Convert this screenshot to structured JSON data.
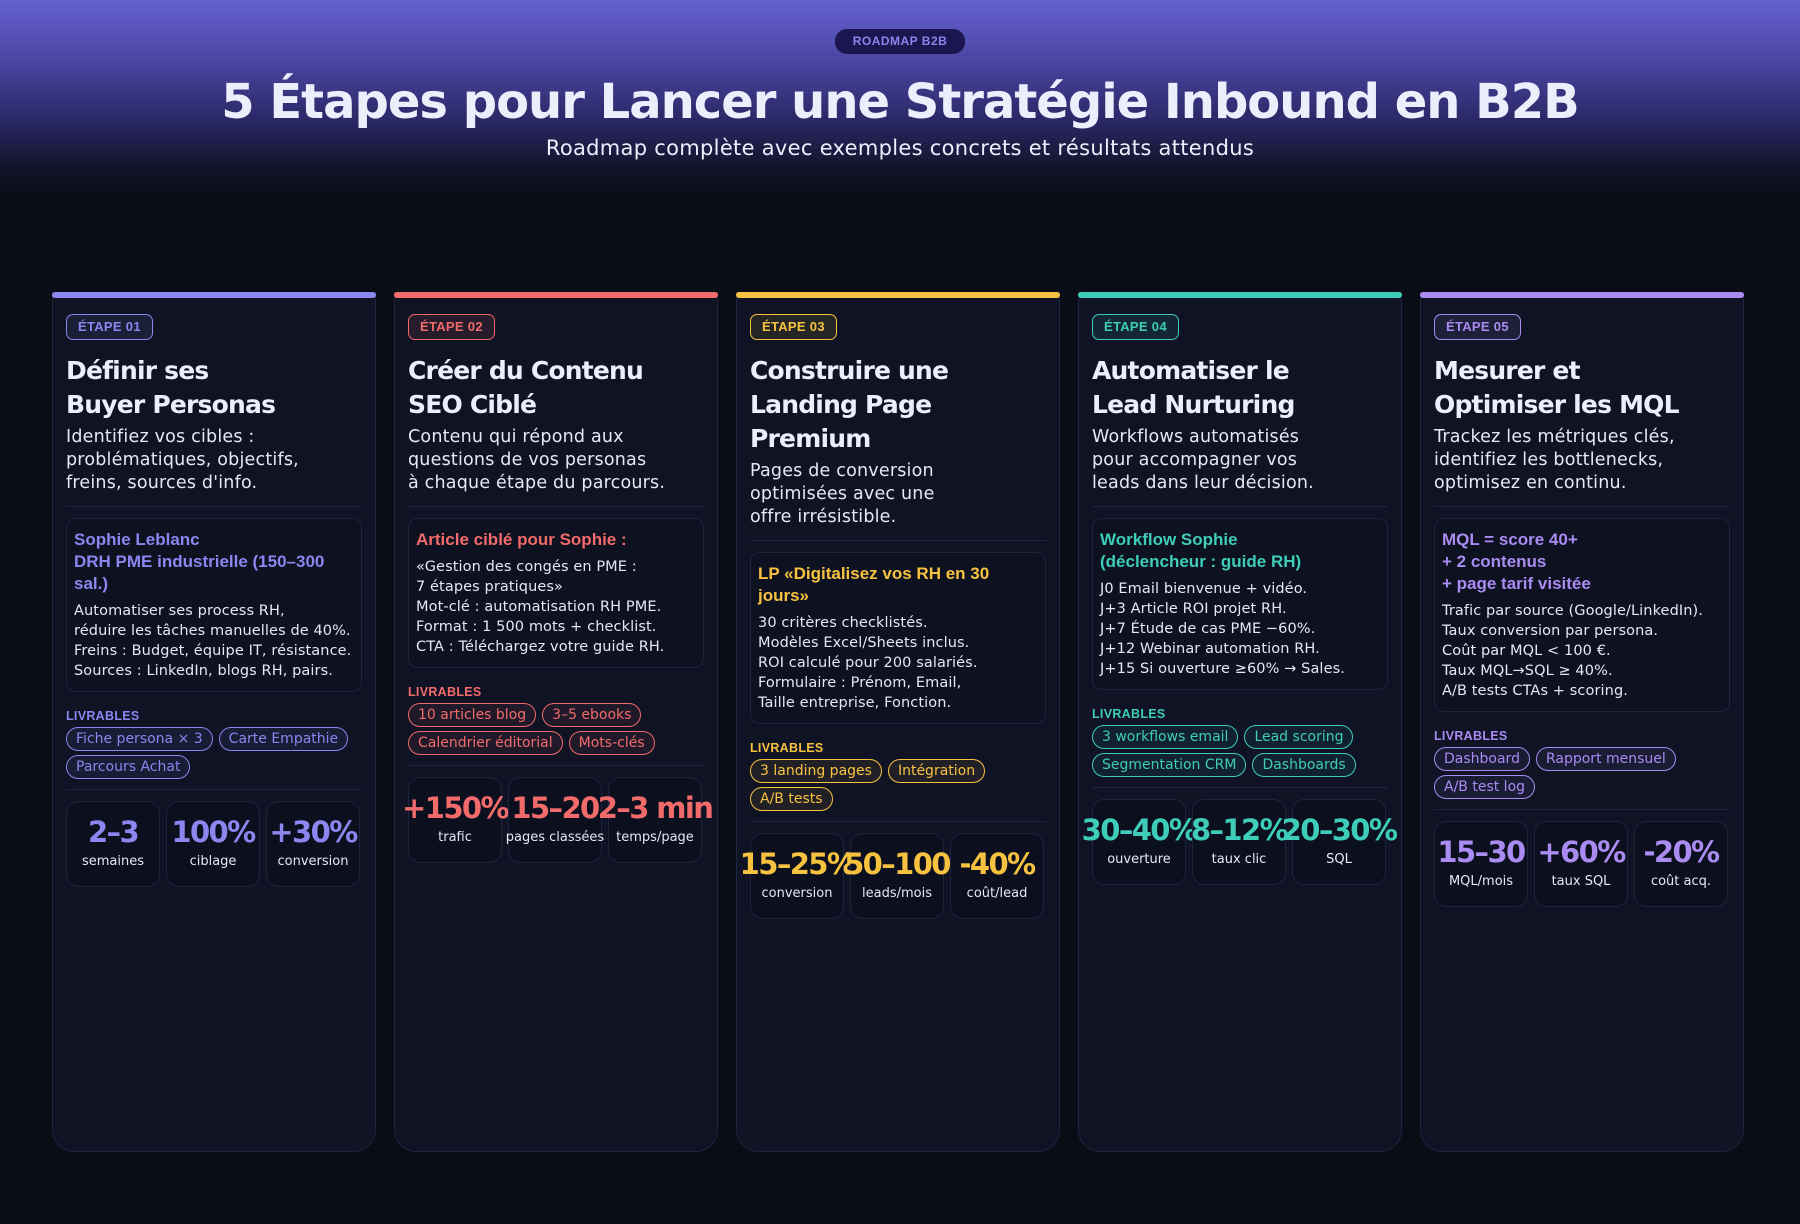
{
  "header": {
    "badge": "ROADMAP B2B",
    "title": "5 Étapes pour Lancer une Stratégie Inbound en B2B",
    "subtitle": "Roadmap complète avec exemples concrets et résultats attendus"
  },
  "livrables_label": "LIVRABLES",
  "steps": [
    {
      "badge": "ÉTAPE 01",
      "color": "#8b86f0",
      "title": "Définir ses\nBuyer Personas",
      "description": "Identifiez vos cibles :\nproblématiques, objectifs,\nfreins, sources d'info.",
      "example_title": "Sophie Leblanc\nDRH PME industrielle (150–300 sal.)",
      "example_body": "Automatiser ses process RH,\nréduire les tâches manuelles de 40%.\nFreins : Budget, équipe IT, résistance.\nSources : LinkedIn, blogs RH, pairs.",
      "tags": [
        "Fiche persona × 3",
        "Carte Empathie",
        "Parcours Achat"
      ],
      "stats": [
        {
          "value": "2–3",
          "label": "semaines"
        },
        {
          "value": "100%",
          "label": "ciblage"
        },
        {
          "value": "+30%",
          "label": "conversion"
        }
      ]
    },
    {
      "badge": "ÉTAPE 02",
      "color": "#f26b6b",
      "title": "Créer du Contenu\nSEO Ciblé",
      "description": "Contenu qui répond aux\nquestions de vos personas\nà chaque étape du parcours.",
      "example_title": "Article ciblé pour Sophie :",
      "example_body": "«Gestion des congés en PME :\n7 étapes pratiques»\nMot-clé : automatisation RH PME.\nFormat : 1 500 mots + checklist.\nCTA : Téléchargez votre guide RH.",
      "tags": [
        "10 articles blog",
        "3–5 ebooks",
        "Calendrier éditorial",
        "Mots-clés"
      ],
      "stats": [
        {
          "value": "+150%",
          "label": "trafic"
        },
        {
          "value": "15–20",
          "label": "pages classées"
        },
        {
          "value": "2–3 min",
          "label": "temps/page"
        }
      ]
    },
    {
      "badge": "ÉTAPE 03",
      "color": "#f7c23f",
      "title": "Construire une\nLanding Page Premium",
      "description": "Pages de conversion\noptimisées avec une\noffre irrésistible.",
      "example_title": "LP «Digitalisez vos RH en 30 jours»",
      "example_body": "30 critères checklistés.\nModèles Excel/Sheets inclus.\nROI calculé pour 200 salariés.\nFormulaire : Prénom, Email,\nTaille entreprise, Fonction.",
      "tags": [
        "3 landing pages",
        "Intégration",
        "A/B tests"
      ],
      "stats": [
        {
          "value": "15–25%",
          "label": "conversion"
        },
        {
          "value": "50–100",
          "label": "leads/mois"
        },
        {
          "value": "-40%",
          "label": "coût/lead"
        }
      ]
    },
    {
      "badge": "ÉTAPE 04",
      "color": "#3ecdb8",
      "title": "Automatiser le\nLead Nurturing",
      "description": "Workflows automatisés\npour accompagner vos\nleads dans leur décision.",
      "example_title": "Workflow Sophie\n(déclencheur : guide RH)",
      "example_body": "J0   Email bienvenue + vidéo.\nJ+3  Article ROI projet RH.\nJ+7  Étude de cas PME −60%.\nJ+12 Webinar automation RH.\nJ+15 Si ouverture ≥60% → Sales.",
      "tags": [
        "3 workflows email",
        "Lead scoring",
        "Segmentation CRM",
        "Dashboards"
      ],
      "stats": [
        {
          "value": "30–40%",
          "label": "ouverture"
        },
        {
          "value": "8–12%",
          "label": "taux clic"
        },
        {
          "value": "20–30%",
          "label": "SQL"
        }
      ]
    },
    {
      "badge": "ÉTAPE 05",
      "color": "#a98bf2",
      "title": "Mesurer et\nOptimiser les MQL",
      "description": "Trackez les métriques clés,\nidentifiez les bottlenecks,\noptimisez en continu.",
      "example_title": "MQL = score 40+\n+ 2 contenus\n+ page tarif visitée",
      "example_body": "Trafic par source (Google/LinkedIn).\nTaux conversion par persona.\nCoût par MQL < 100 €.\nTaux MQL→SQL ≥ 40%.\nA/B tests CTAs + scoring.",
      "tags": [
        "Dashboard",
        "Rapport mensuel",
        "A/B test log"
      ],
      "stats": [
        {
          "value": "15–30",
          "label": "MQL/mois"
        },
        {
          "value": "+60%",
          "label": "taux SQL"
        },
        {
          "value": "-20%",
          "label": "coût acq."
        }
      ]
    }
  ]
}
